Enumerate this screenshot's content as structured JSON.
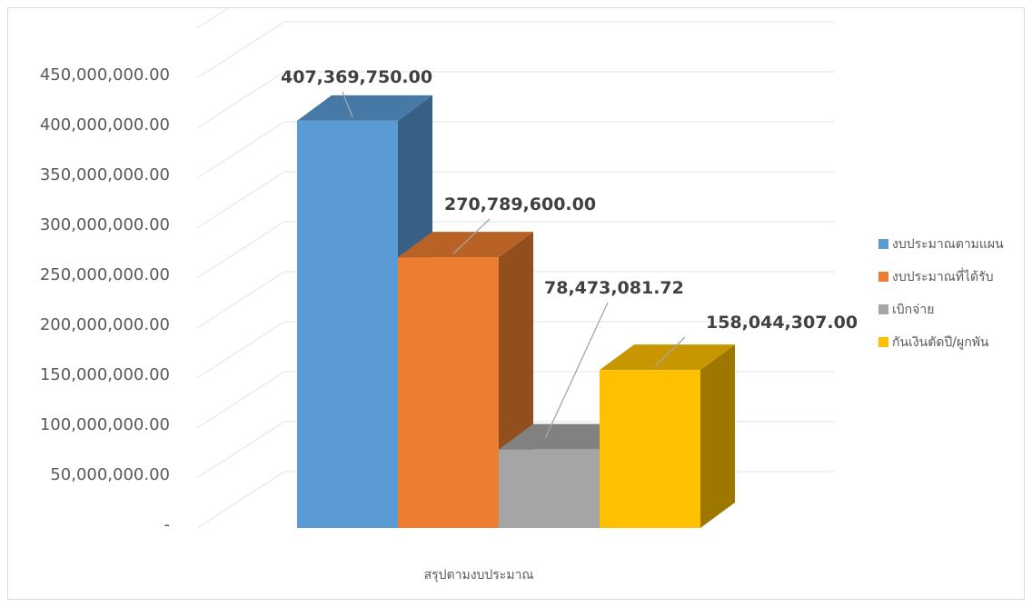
{
  "chart_data": {
    "type": "bar",
    "style": "3d-clustered-column",
    "categories": [
      "สรุปตามงบประมาณ"
    ],
    "series": [
      {
        "name": "งบประมาณตามแผน",
        "values": [
          407369750.0
        ],
        "label": "407,369,750.00",
        "color": "#5b9bd5"
      },
      {
        "name": "งบประมาณที่ได้รับ",
        "values": [
          270789600.0
        ],
        "label": "270,789,600.00",
        "color": "#ed7d31"
      },
      {
        "name": "เบิกจ่าย",
        "values": [
          78473081.72
        ],
        "label": "78,473,081.72",
        "color": "#a5a5a5"
      },
      {
        "name": "กันเงินตัดปี/ผูกพัน",
        "values": [
          158044307.0
        ],
        "label": "158,044,307.00",
        "color": "#ffc000"
      }
    ],
    "y_ticks": [
      {
        "value": 0,
        "label": "-"
      },
      {
        "value": 50000000,
        "label": "50,000,000.00"
      },
      {
        "value": 100000000,
        "label": "100,000,000.00"
      },
      {
        "value": 150000000,
        "label": "150,000,000.00"
      },
      {
        "value": 200000000,
        "label": "200,000,000.00"
      },
      {
        "value": 250000000,
        "label": "250,000,000.00"
      },
      {
        "value": 300000000,
        "label": "300,000,000.00"
      },
      {
        "value": 350000000,
        "label": "350,000,000.00"
      },
      {
        "value": 400000000,
        "label": "400,000,000.00"
      },
      {
        "value": 450000000,
        "label": "450,000,000.00"
      }
    ],
    "ylim": [
      0,
      500000000
    ],
    "grid": true,
    "legend_position": "right"
  }
}
